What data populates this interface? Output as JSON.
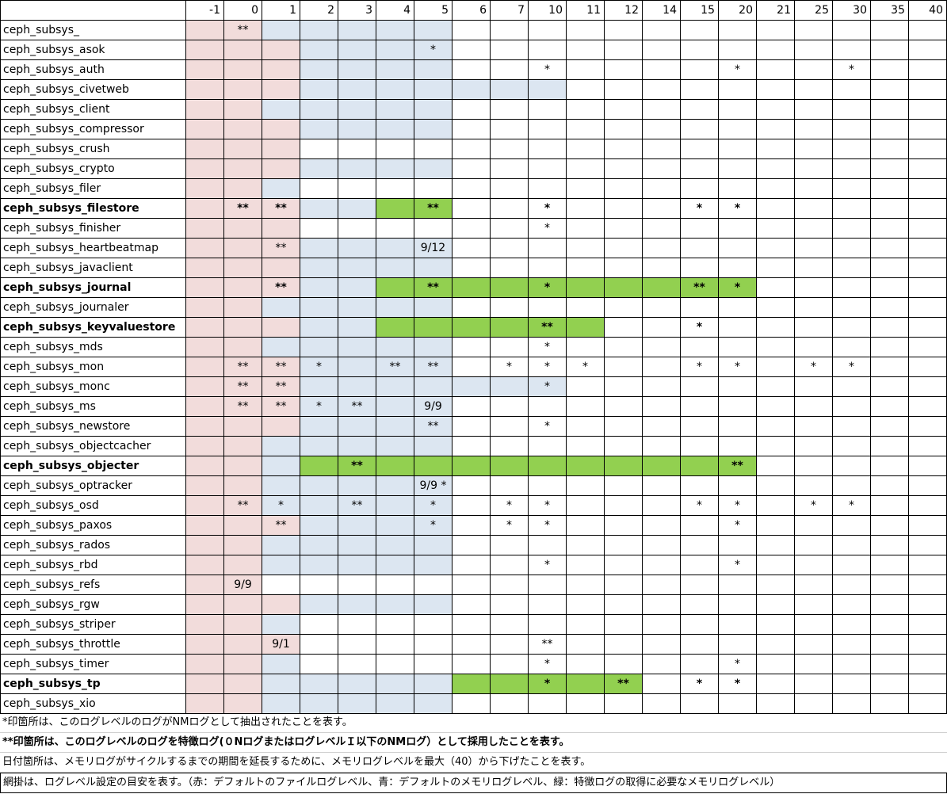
{
  "header": {
    "corner": "",
    "levels": [
      "-1",
      "0",
      "1",
      "2",
      "3",
      "4",
      "5",
      "6",
      "7",
      "10",
      "11",
      "12",
      "14",
      "15",
      "20",
      "21",
      "25",
      "30",
      "35",
      "40"
    ]
  },
  "rows": [
    {
      "name": "ceph_subsys_",
      "bold": false,
      "colors": "rrbbbbb",
      "marks": {
        "1": "**"
      }
    },
    {
      "name": "ceph_subsys_asok",
      "bold": false,
      "colors": "rrrbbbb",
      "marks": {
        "6": "*"
      }
    },
    {
      "name": "ceph_subsys_auth",
      "bold": false,
      "colors": "rrrbbbb",
      "marks": {
        "9": "*",
        "14": "*",
        "17": "*"
      }
    },
    {
      "name": "ceph_subsys_civetweb",
      "bold": false,
      "colors": "rrrbbbbbbb",
      "marks": {}
    },
    {
      "name": "ceph_subsys_client",
      "bold": false,
      "colors": "rrbbbbb",
      "marks": {}
    },
    {
      "name": "ceph_subsys_compressor",
      "bold": false,
      "colors": "rrrbbbb",
      "marks": {}
    },
    {
      "name": "ceph_subsys_crush",
      "bold": false,
      "colors": "rrr",
      "marks": {}
    },
    {
      "name": "ceph_subsys_crypto",
      "bold": false,
      "colors": "rrrbbbb",
      "marks": {}
    },
    {
      "name": "ceph_subsys_filer",
      "bold": false,
      "colors": "rrb",
      "marks": {}
    },
    {
      "name": "ceph_subsys_filestore",
      "bold": true,
      "colors": "rrrbbgg",
      "marks": {
        "1": "**",
        "2": "**",
        "6": "**",
        "9": "*",
        "13": "*",
        "14": "*"
      }
    },
    {
      "name": "ceph_subsys_finisher",
      "bold": false,
      "colors": "rrr",
      "marks": {
        "9": "*"
      }
    },
    {
      "name": "ceph_subsys_heartbeatmap",
      "bold": false,
      "colors": "rrrbbbb",
      "marks": {
        "2": "**",
        "6": "9/12"
      }
    },
    {
      "name": "ceph_subsys_javaclient",
      "bold": false,
      "colors": "rrrbbbb",
      "marks": {}
    },
    {
      "name": "ceph_subsys_journal",
      "bold": true,
      "colors": "rrrbbgggggggggg",
      "marks": {
        "2": "**",
        "6": "**",
        "9": "*",
        "13": "**",
        "14": "*"
      }
    },
    {
      "name": "ceph_subsys_journaler",
      "bold": false,
      "colors": "rrbbbbb",
      "marks": {}
    },
    {
      "name": "ceph_subsys_keyvaluestore",
      "bold": true,
      "colors": "rrrbbgggggg",
      "marks": {
        "9": "**",
        "13": "*"
      }
    },
    {
      "name": "ceph_subsys_mds",
      "bold": false,
      "colors": "rrbbbbb",
      "marks": {
        "9": "*"
      }
    },
    {
      "name": "ceph_subsys_mon",
      "bold": false,
      "colors": "rrrbbbb",
      "marks": {
        "1": "**",
        "2": "**",
        "3": "*",
        "5": "**",
        "6": "**",
        "8": "*",
        "9": "*",
        "10": "*",
        "13": "*",
        "14": "*",
        "16": "*",
        "17": "*"
      }
    },
    {
      "name": "ceph_subsys_monc",
      "bold": false,
      "colors": "rrrbbbbbbb",
      "marks": {
        "1": "**",
        "2": "**",
        "9": "*"
      }
    },
    {
      "name": "ceph_subsys_ms",
      "bold": false,
      "colors": "rrrbbbb",
      "marks": {
        "1": "**",
        "2": "**",
        "3": "*",
        "4": "**",
        "6": "9/9"
      }
    },
    {
      "name": "ceph_subsys_newstore",
      "bold": false,
      "colors": "rrrbbbb",
      "marks": {
        "6": "**",
        "9": "*"
      }
    },
    {
      "name": "ceph_subsys_objectcacher",
      "bold": false,
      "colors": "rrbbbbb",
      "marks": {}
    },
    {
      "name": "ceph_subsys_objecter",
      "bold": true,
      "colors": "rrbgggggggggggg",
      "marks": {
        "4": "**",
        "14": "**"
      }
    },
    {
      "name": "ceph_subsys_optracker",
      "bold": false,
      "colors": "rrbbbbb",
      "marks": {
        "6": "9/9 *"
      }
    },
    {
      "name": "ceph_subsys_osd",
      "bold": false,
      "colors": "rrbbbbb",
      "marks": {
        "1": "**",
        "2": "*",
        "4": "**",
        "6": "*",
        "8": "*",
        "9": "*",
        "13": "*",
        "14": "*",
        "16": "*",
        "17": "*"
      }
    },
    {
      "name": "ceph_subsys_paxos",
      "bold": false,
      "colors": "rrrbbbb",
      "marks": {
        "2": "**",
        "6": "*",
        "8": "*",
        "9": "*",
        "14": "*"
      }
    },
    {
      "name": "ceph_subsys_rados",
      "bold": false,
      "colors": "rrbbbbb",
      "marks": {}
    },
    {
      "name": "ceph_subsys_rbd",
      "bold": false,
      "colors": "rrbbbbb",
      "marks": {
        "9": "*",
        "14": "*"
      }
    },
    {
      "name": "ceph_subsys_refs",
      "bold": false,
      "colors": "rr",
      "marks": {
        "1": "9/9"
      }
    },
    {
      "name": "ceph_subsys_rgw",
      "bold": false,
      "colors": "rrrbbbb",
      "marks": {}
    },
    {
      "name": "ceph_subsys_striper",
      "bold": false,
      "colors": "rrb",
      "marks": {}
    },
    {
      "name": "ceph_subsys_throttle",
      "bold": false,
      "colors": "rrr",
      "marks": {
        "2": "9/1",
        "9": "**"
      }
    },
    {
      "name": "ceph_subsys_timer",
      "bold": false,
      "colors": "rrb",
      "marks": {
        "9": "*",
        "14": "*"
      }
    },
    {
      "name": "ceph_subsys_tp",
      "bold": true,
      "colors": "rrbbbbbggggg",
      "marks": {
        "9": "*",
        "11": "**",
        "13": "*",
        "14": "*"
      }
    },
    {
      "name": "ceph_subsys_xio",
      "bold": false,
      "colors": "rrbbbbb",
      "marks": {}
    }
  ],
  "notes": [
    {
      "text": "*印箇所は、このログレベルのログがNMログとして抽出されたことを表す。",
      "bold": false
    },
    {
      "text": "**印箇所は、このログレベルのログを特徴ログ(０NログまたはログレベルＩ以下のNMログ）として採用したことを表す。",
      "bold": true
    },
    {
      "text": "日付箇所は、メモリログがサイクルするまでの期間を延長するために、メモリログレベルを最大（40）から下げたことを表す。",
      "bold": false
    },
    {
      "text": "網掛は、ログレベル設定の目安を表す。（赤：デフォルトのファイルログレベル、青：デフォルトのメモリログレベル、緑：特徴ログの取得に必要なメモリログレベル）",
      "bold": false
    }
  ],
  "colors": {
    "r": "#f2dcdb",
    "b": "#dce6f1",
    "g": "#92d050"
  }
}
